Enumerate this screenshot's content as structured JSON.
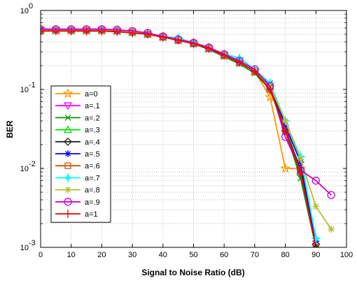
{
  "chart_data": {
    "type": "line",
    "xlabel": "Signal to Noise Ratio (dB)",
    "ylabel": "BER",
    "xlim": [
      0,
      100
    ],
    "ylim": [
      0.001,
      1
    ],
    "yscale": "log",
    "grid": true,
    "legend_position": "lower-left",
    "x_ticks": [
      "0",
      "10",
      "20",
      "30",
      "40",
      "50",
      "60",
      "70",
      "80",
      "90",
      "100"
    ],
    "y_ticks": [
      {
        "value": 1,
        "base": "10",
        "exp": "0"
      },
      {
        "value": 0.1,
        "base": "10",
        "exp": "-1"
      },
      {
        "value": 0.01,
        "base": "10",
        "exp": "-2"
      },
      {
        "value": 0.001,
        "base": "10",
        "exp": "-3"
      }
    ],
    "series": [
      {
        "name": "a=0",
        "color": "#ff9900",
        "marker": "star",
        "x": [
          0,
          5,
          10,
          15,
          20,
          25,
          30,
          35,
          40,
          45,
          50,
          55,
          60,
          65,
          70,
          75,
          80,
          85
        ],
        "y": [
          0.56,
          0.56,
          0.56,
          0.56,
          0.56,
          0.55,
          0.53,
          0.5,
          0.46,
          0.42,
          0.38,
          0.33,
          0.27,
          0.22,
          0.17,
          0.08,
          0.01,
          0.01
        ]
      },
      {
        "name": "a=.1",
        "color": "#ff00ff",
        "marker": "triangle-down",
        "x": [
          0,
          5,
          10,
          15,
          20,
          25,
          30,
          35,
          40,
          45,
          50,
          55,
          60,
          65,
          70,
          75,
          80,
          85,
          90
        ],
        "y": [
          0.56,
          0.56,
          0.56,
          0.56,
          0.56,
          0.55,
          0.53,
          0.5,
          0.46,
          0.42,
          0.38,
          0.33,
          0.27,
          0.22,
          0.17,
          0.1,
          0.03,
          0.008,
          0.001
        ]
      },
      {
        "name": "a=.2",
        "color": "#009900",
        "marker": "x",
        "x": [
          0,
          5,
          10,
          15,
          20,
          25,
          30,
          35,
          40,
          45,
          50,
          55,
          60,
          65,
          70,
          75,
          80,
          85,
          90
        ],
        "y": [
          0.55,
          0.55,
          0.55,
          0.55,
          0.55,
          0.54,
          0.52,
          0.5,
          0.46,
          0.42,
          0.38,
          0.32,
          0.26,
          0.21,
          0.16,
          0.1,
          0.03,
          0.0075,
          0.001
        ]
      },
      {
        "name": "a=.3",
        "color": "#00dd00",
        "marker": "triangle-up",
        "x": [
          0,
          5,
          10,
          15,
          20,
          25,
          30,
          35,
          40,
          45,
          50,
          55,
          60,
          65,
          70,
          75,
          80,
          85,
          90
        ],
        "y": [
          0.56,
          0.56,
          0.56,
          0.56,
          0.56,
          0.55,
          0.53,
          0.5,
          0.46,
          0.42,
          0.38,
          0.33,
          0.27,
          0.22,
          0.17,
          0.11,
          0.035,
          0.009,
          0.001
        ]
      },
      {
        "name": "a=.4",
        "color": "#222222",
        "marker": "diamond",
        "x": [
          0,
          5,
          10,
          15,
          20,
          25,
          30,
          35,
          40,
          45,
          50,
          55,
          60,
          65,
          70,
          75,
          80,
          85,
          90
        ],
        "y": [
          0.56,
          0.56,
          0.56,
          0.56,
          0.56,
          0.55,
          0.53,
          0.5,
          0.46,
          0.42,
          0.38,
          0.33,
          0.27,
          0.22,
          0.17,
          0.11,
          0.03,
          0.01,
          0.0011
        ]
      },
      {
        "name": "a=.5",
        "color": "#0000ff",
        "marker": "asterisk",
        "x": [
          0,
          5,
          10,
          15,
          20,
          25,
          30,
          35,
          40,
          45,
          50,
          55,
          60,
          65,
          70,
          75,
          80,
          85,
          90
        ],
        "y": [
          0.56,
          0.56,
          0.56,
          0.56,
          0.56,
          0.55,
          0.53,
          0.5,
          0.46,
          0.42,
          0.38,
          0.33,
          0.27,
          0.22,
          0.17,
          0.12,
          0.035,
          0.012,
          0.0012
        ]
      },
      {
        "name": "a=.6",
        "color": "#cc5500",
        "marker": "square",
        "x": [
          0,
          5,
          10,
          15,
          20,
          25,
          30,
          35,
          40,
          45,
          50,
          55,
          60,
          65,
          70,
          75,
          80,
          85,
          90
        ],
        "y": [
          0.56,
          0.56,
          0.56,
          0.56,
          0.56,
          0.55,
          0.53,
          0.5,
          0.46,
          0.42,
          0.38,
          0.33,
          0.27,
          0.22,
          0.17,
          0.1,
          0.03,
          0.009,
          0.001
        ]
      },
      {
        "name": "a=.7",
        "color": "#00ffff",
        "marker": "star4",
        "x": [
          0,
          5,
          10,
          15,
          20,
          25,
          30,
          35,
          40,
          45,
          50,
          55,
          60,
          65,
          70,
          75,
          80,
          85,
          90
        ],
        "y": [
          0.57,
          0.57,
          0.57,
          0.57,
          0.57,
          0.56,
          0.54,
          0.51,
          0.47,
          0.45,
          0.39,
          0.34,
          0.28,
          0.25,
          0.18,
          0.12,
          0.04,
          0.014,
          0.0013
        ]
      },
      {
        "name": "a=.8",
        "color": "#bbbb33",
        "marker": "asterisk",
        "x": [
          0,
          5,
          10,
          15,
          20,
          25,
          30,
          35,
          40,
          45,
          50,
          55,
          60,
          65,
          70,
          75,
          80,
          85,
          90,
          95
        ],
        "y": [
          0.56,
          0.56,
          0.56,
          0.56,
          0.56,
          0.55,
          0.53,
          0.5,
          0.46,
          0.42,
          0.38,
          0.33,
          0.27,
          0.22,
          0.17,
          0.11,
          0.04,
          0.013,
          0.0033,
          0.0017
        ]
      },
      {
        "name": "a=.9",
        "color": "#cc00cc",
        "marker": "circle",
        "x": [
          0,
          5,
          10,
          15,
          20,
          25,
          30,
          35,
          40,
          45,
          50,
          55,
          60,
          65,
          70,
          75,
          80,
          85,
          90,
          95
        ],
        "y": [
          0.58,
          0.58,
          0.58,
          0.58,
          0.58,
          0.57,
          0.55,
          0.52,
          0.47,
          0.43,
          0.39,
          0.34,
          0.28,
          0.23,
          0.18,
          0.11,
          0.025,
          0.0095,
          0.007,
          0.0046
        ]
      },
      {
        "name": "a=1",
        "color": "#ee0000",
        "marker": "plus",
        "x": [
          0,
          5,
          10,
          15,
          20,
          25,
          30,
          35,
          40,
          45,
          50,
          55,
          60,
          65,
          70,
          75,
          80,
          85,
          90
        ],
        "y": [
          0.55,
          0.55,
          0.55,
          0.55,
          0.55,
          0.54,
          0.52,
          0.5,
          0.46,
          0.42,
          0.38,
          0.33,
          0.27,
          0.22,
          0.17,
          0.1,
          0.03,
          0.009,
          0.001
        ]
      }
    ]
  }
}
